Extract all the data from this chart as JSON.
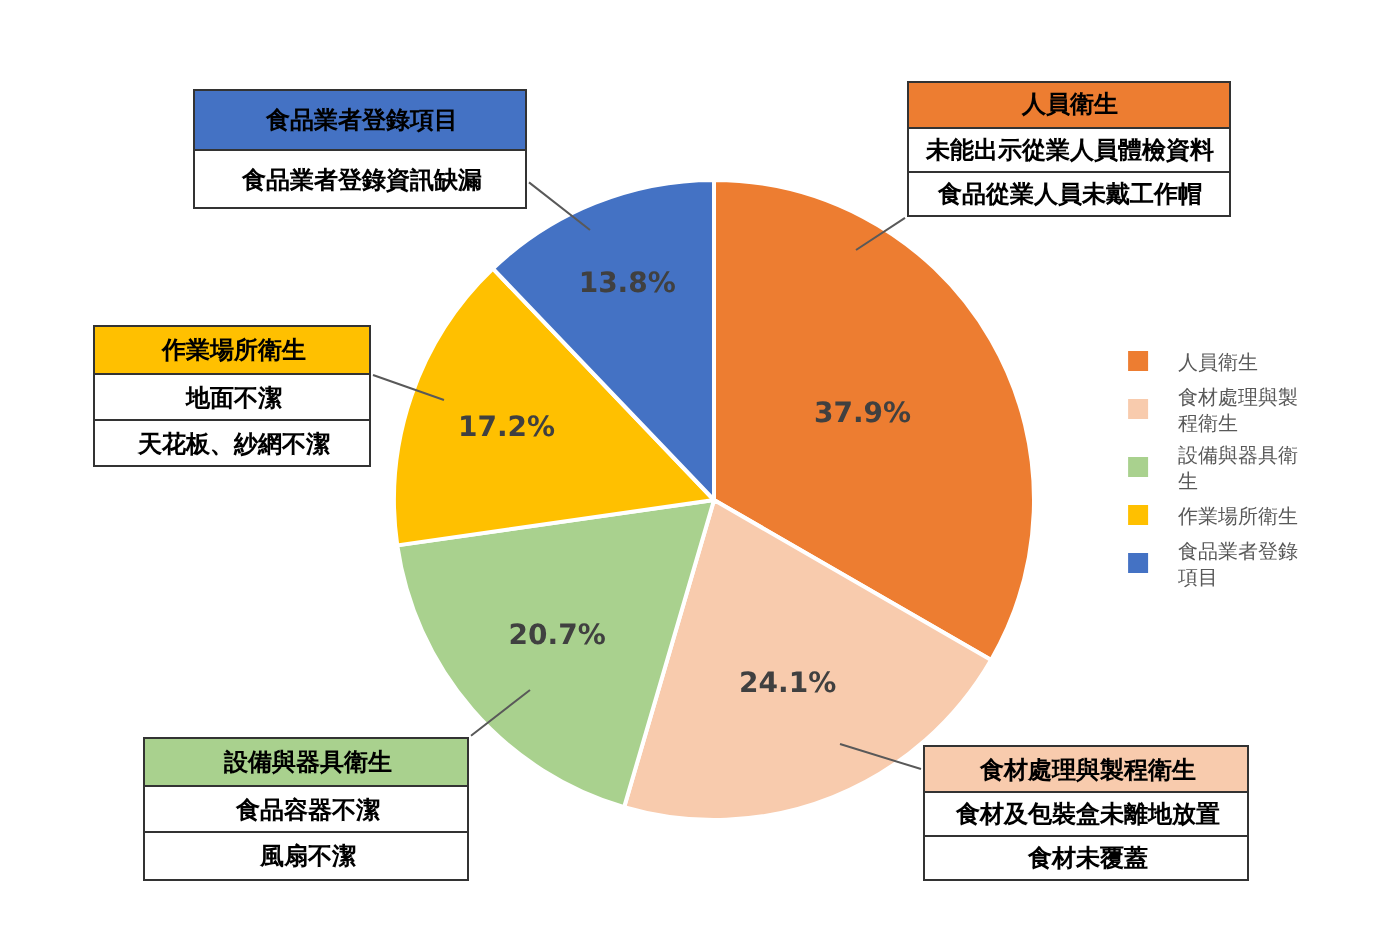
{
  "chart_data": {
    "type": "pie",
    "categories": [
      "人員衛生",
      "食材處理與製程衛生",
      "設備與器具衛生",
      "作業場所衛生",
      "食品業者登錄項目"
    ],
    "values": [
      37.9,
      24.1,
      20.7,
      17.2,
      13.8
    ],
    "value_labels": [
      "37.9%",
      "24.1%",
      "20.7%",
      "17.2%",
      "13.8%"
    ],
    "colors": [
      "#ed7d31",
      "#f8cbad",
      "#a9d18e",
      "#ffc000",
      "#4472c4"
    ],
    "legend": "right",
    "annotations": [
      "人員衛生",
      "未能出示從業人員體檢資料",
      "食品從業人員未戴工作帽",
      "食材處理與製程衛生",
      "食材及包裝盒未離地放置",
      "食材未覆蓋",
      "設備與器具衛生",
      "食品容器不潔",
      "風扇不潔",
      "作業場所衛生",
      "地面不潔",
      "天花板、紗網不潔",
      "食品業者登錄項目",
      "食品業者登錄資訊缺漏"
    ]
  }
}
